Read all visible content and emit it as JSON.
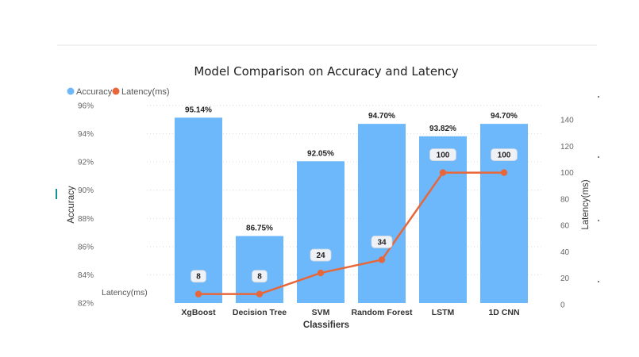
{
  "chart_data": {
    "type": "bar",
    "title": "Model Comparison on Accuracy and Latency",
    "xlabel": "Classifiers",
    "ylabel": "Accuracy",
    "y2label": "Latency(ms)",
    "categories": [
      "XgBoost",
      "Decision Tree",
      "SVM",
      "Random Forest",
      "LSTM",
      "1D CNN"
    ],
    "series": [
      {
        "name": "Accuracy",
        "type": "bar",
        "axis": "left",
        "color": "#6db8fb",
        "values": [
          95.14,
          86.75,
          92.05,
          94.7,
          93.82,
          94.7
        ],
        "labels": [
          "95.14%",
          "86.75%",
          "92.05%",
          "94.70%",
          "93.82%",
          "94.70%"
        ]
      },
      {
        "name": "Latency(ms)",
        "type": "line",
        "axis": "right",
        "color": "#e8673a",
        "values": [
          8,
          8,
          24,
          34,
          100,
          100
        ],
        "labels": [
          "8",
          "8",
          "24",
          "34",
          "100",
          "100"
        ]
      }
    ],
    "ylim": [
      82,
      96
    ],
    "y_ticks": [
      "82%",
      "84%",
      "86%",
      "88%",
      "90%",
      "92%",
      "94%",
      "96%"
    ],
    "y2lim": [
      0,
      140
    ],
    "y2_ticks": [
      "0",
      "20",
      "40",
      "60",
      "80",
      "100",
      "120",
      "140"
    ],
    "legend": "top-left",
    "grid": true,
    "side_label": "Latency(ms)"
  }
}
